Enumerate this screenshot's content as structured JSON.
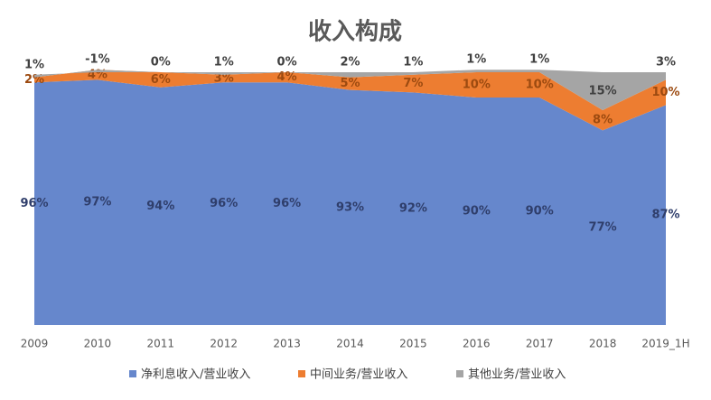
{
  "chart_data": {
    "type": "stacked-area",
    "title": "收入构成",
    "categories": [
      "2009",
      "2010",
      "2011",
      "2012",
      "2013",
      "2014",
      "2015",
      "2016",
      "2017",
      "2018",
      "2019_1H"
    ],
    "ylim": [
      0,
      100
    ],
    "series": [
      {
        "name": "净利息收入/营业收入",
        "color": "#6687cc",
        "label_color": "#2f3e6b",
        "values": [
          96,
          97,
          94,
          96,
          96,
          93,
          92,
          90,
          90,
          77,
          87
        ],
        "value_labels": [
          "96%",
          "97%",
          "94%",
          "96%",
          "96%",
          "93%",
          "92%",
          "90%",
          "90%",
          "77%",
          "87%"
        ]
      },
      {
        "name": "中间业务/营业收入",
        "color": "#ed7d31",
        "label_color": "#9c4a10",
        "values": [
          2,
          4,
          6,
          3,
          4,
          5,
          7,
          10,
          10,
          8,
          10
        ],
        "value_labels": [
          "2%",
          "4%",
          "6%",
          "3%",
          "4%",
          "5%",
          "7%",
          "10%",
          "10%",
          "8%",
          "10%"
        ]
      },
      {
        "name": "其他业务/营业收入",
        "color": "#a5a5a5",
        "label_color": "#404040",
        "values": [
          1,
          -1,
          0,
          1,
          0,
          2,
          1,
          1,
          1,
          15,
          3
        ],
        "value_labels": [
          "1%",
          "-1%",
          "0%",
          "1%",
          "0%",
          "2%",
          "1%",
          "1%",
          "1%",
          "15%",
          "3%"
        ]
      }
    ]
  }
}
